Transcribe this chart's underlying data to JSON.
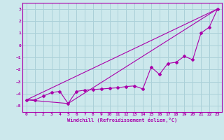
{
  "xlabel": "Windchill (Refroidissement éolien,°C)",
  "background_color": "#cce8ec",
  "grid_color": "#aad0d8",
  "line_color": "#aa00aa",
  "xlim": [
    -0.5,
    23.5
  ],
  "ylim": [
    -5.5,
    3.5
  ],
  "yticks": [
    -5,
    -4,
    -3,
    -2,
    -1,
    0,
    1,
    2,
    3
  ],
  "xticks": [
    0,
    1,
    2,
    3,
    4,
    5,
    6,
    7,
    8,
    9,
    10,
    11,
    12,
    13,
    14,
    15,
    16,
    17,
    18,
    19,
    20,
    21,
    22,
    23
  ],
  "line1_x": [
    0,
    1,
    2,
    3,
    4,
    5,
    6,
    7,
    8,
    9,
    10,
    11,
    12,
    13,
    14,
    15,
    16,
    17,
    18,
    19,
    20,
    21,
    22,
    23
  ],
  "line1_y": [
    -4.5,
    -4.5,
    -4.2,
    -3.9,
    -3.8,
    -4.8,
    -3.8,
    -3.7,
    -3.65,
    -3.6,
    -3.55,
    -3.5,
    -3.4,
    -3.35,
    -3.6,
    -1.8,
    -2.4,
    -1.5,
    -1.4,
    -0.9,
    -1.2,
    1.0,
    1.5,
    3.0
  ],
  "line2_x": [
    0,
    23
  ],
  "line2_y": [
    -4.5,
    3.0
  ],
  "line3_x": [
    0,
    5,
    23
  ],
  "line3_y": [
    -4.5,
    -4.8,
    3.0
  ]
}
